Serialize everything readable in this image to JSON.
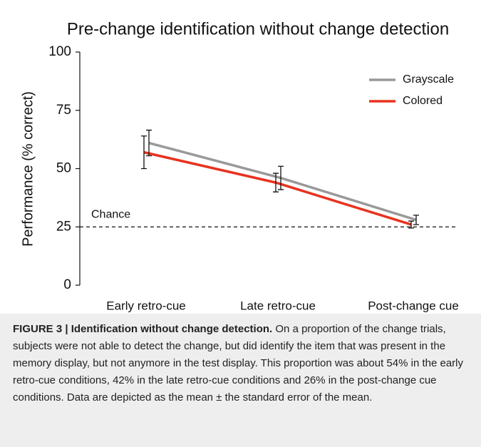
{
  "chart_data": {
    "type": "line",
    "title": "Pre-change identification without change detection",
    "y_label": "Performance (% correct)",
    "categories": [
      "Early retro-cue",
      "Late retro-cue",
      "Post-change cue"
    ],
    "series": [
      {
        "name": "Grayscale",
        "color": "#999999",
        "values": [
          61,
          46,
          28
        ],
        "errors": [
          5.5,
          5,
          2
        ]
      },
      {
        "name": "Colored",
        "color": "#e8321e",
        "values": [
          57,
          44,
          26
        ],
        "errors": [
          7,
          4,
          1.5
        ]
      }
    ],
    "ylim": [
      0,
      100
    ],
    "yticks": [
      0,
      25,
      50,
      75,
      100
    ],
    "reference_line": {
      "label": "Chance",
      "value": 25
    },
    "legend": "upper right"
  },
  "caption": {
    "label": "FIGURE 3 | Identification without change detection.",
    "text": "On a proportion of the change trials, subjects were not able to detect the change, but did identify the item that was present in the memory display, but not anymore in the test display. This proportion was about 54% in the early retro-cue conditions, 42% in the late retro-cue conditions and 26% in the post-change cue conditions. Data are depicted as the mean ± the standard error of the mean."
  }
}
